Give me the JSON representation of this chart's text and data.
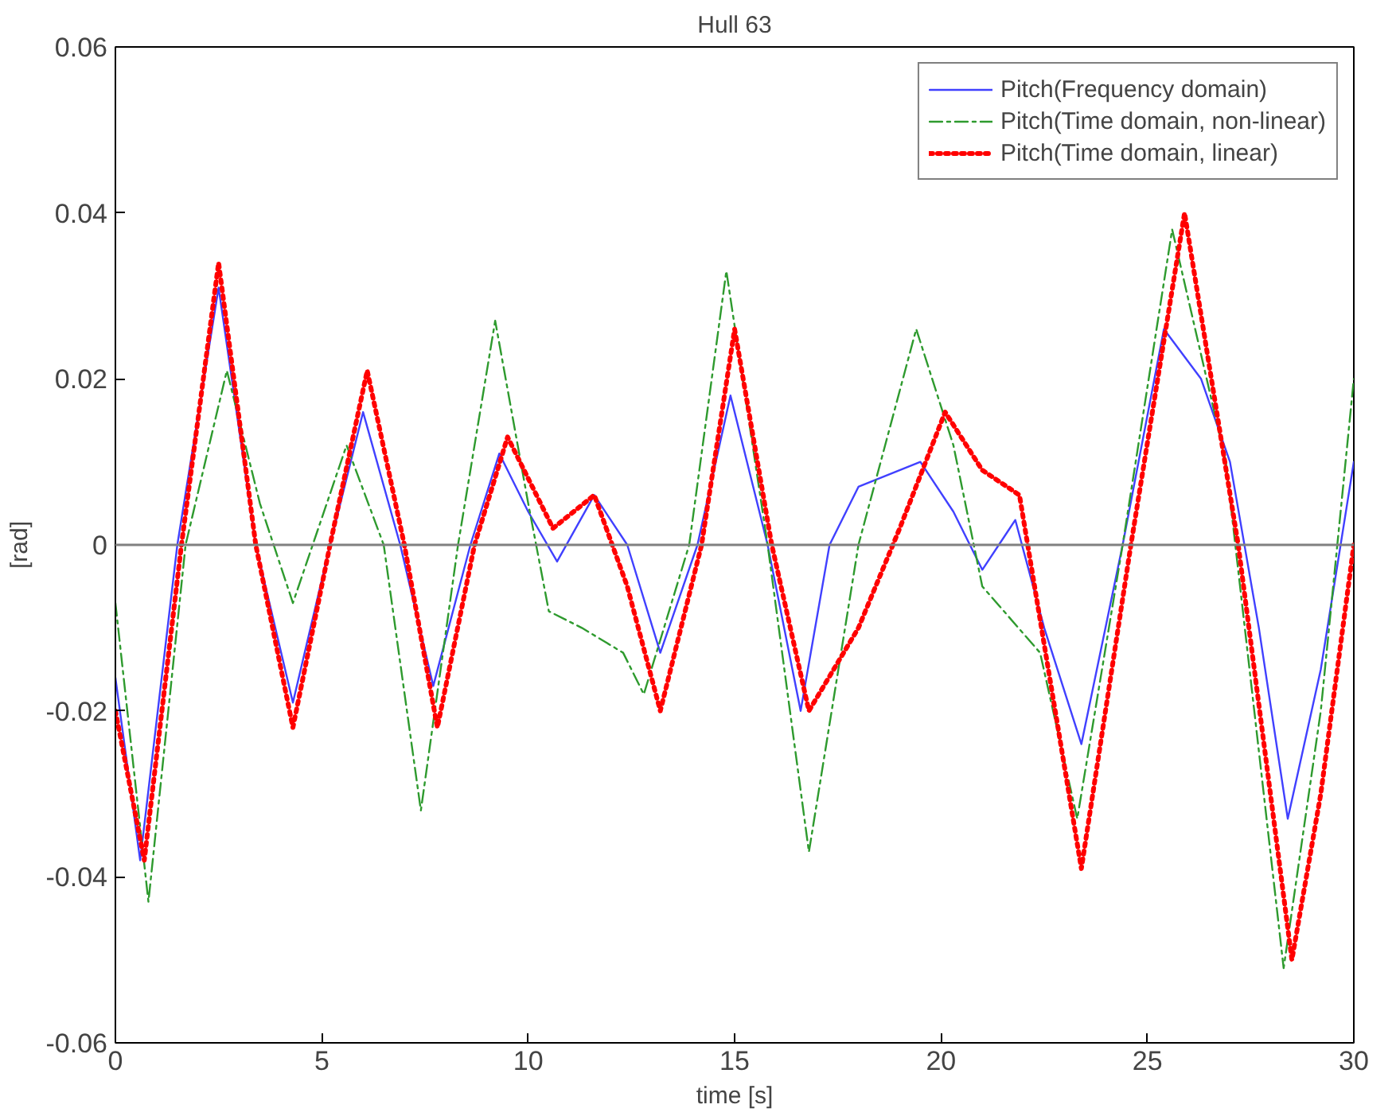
{
  "chart_data": {
    "type": "line",
    "title": "Hull 63",
    "xlabel": "time [s]",
    "ylabel": "[rad]",
    "xlim": [
      0,
      30
    ],
    "xticks": [
      0,
      5,
      10,
      15,
      20,
      25,
      30
    ],
    "ylim": [
      -0.06,
      0.06
    ],
    "yticks": [
      {
        "value": -0.06,
        "label": "-0.06"
      },
      {
        "value": -0.04,
        "label": "-0.04"
      },
      {
        "value": -0.02,
        "label": "-0.02"
      },
      {
        "value": 0,
        "label": "0"
      },
      {
        "value": 0.02,
        "label": "0.02"
      },
      {
        "value": 0.04,
        "label": "0.04"
      },
      {
        "value": 0.06,
        "label": "0.06"
      }
    ],
    "grid": false,
    "legend": "top right",
    "ref_lines": [
      {
        "axis": "y",
        "value": 0,
        "color": "#808080"
      }
    ],
    "series": [
      {
        "name": "Pitch(Frequency domain)",
        "color": "#4040ff",
        "line_style": "solid",
        "x": [
          0,
          0.6,
          1.5,
          2.5,
          3.4,
          4.3,
          5.2,
          6,
          6.9,
          7.7,
          8.6,
          9.3,
          10,
          10.7,
          11.6,
          12.4,
          13.2,
          14.1,
          14.9,
          15.8,
          16.6,
          17.3,
          18,
          19.5,
          20.3,
          21,
          21.8,
          22.5,
          23.4,
          24.4,
          25.4,
          26.3,
          27,
          27.7,
          28.4,
          29.2,
          30
        ],
        "values": [
          -0.016,
          -0.038,
          0,
          0.031,
          0,
          -0.019,
          0,
          0.016,
          0,
          -0.017,
          0,
          0.011,
          0.004,
          -0.002,
          0.006,
          0,
          -0.013,
          0,
          0.018,
          0,
          -0.02,
          0,
          0.007,
          0.01,
          0.004,
          -0.003,
          0.003,
          -0.01,
          -0.024,
          0,
          0.026,
          0.02,
          0.01,
          -0.01,
          -0.033,
          -0.015,
          0.01
        ]
      },
      {
        "name": "Pitch(Time domain, non-linear)",
        "color": "#2e9a2e",
        "line_style": "dashed",
        "x": [
          0,
          0.8,
          1.7,
          2.7,
          3.5,
          4.3,
          5.6,
          6.5,
          7.4,
          8.3,
          9.2,
          10,
          10.5,
          11.3,
          12.3,
          12.8,
          13.9,
          14.8,
          15.8,
          16.8,
          18,
          19.4,
          20.3,
          21,
          22.4,
          23.3,
          24.4,
          25.6,
          26.9,
          28.3,
          29.2,
          30
        ],
        "values": [
          -0.007,
          -0.043,
          0,
          0.021,
          0.005,
          -0.007,
          0.012,
          0,
          -0.032,
          0,
          0.027,
          0.005,
          -0.008,
          -0.01,
          -0.013,
          -0.018,
          0,
          0.033,
          0,
          -0.037,
          0,
          0.026,
          0.012,
          -0.005,
          -0.013,
          -0.033,
          0,
          0.038,
          0.01,
          -0.051,
          -0.02,
          0.02
        ]
      },
      {
        "name": "Pitch(Time domain, linear)",
        "color": "#ff0000",
        "line_style": "dotted",
        "x": [
          0,
          0.7,
          1.6,
          2.5,
          3.4,
          4.3,
          5.2,
          6.1,
          7,
          7.8,
          8.7,
          9.5,
          10.6,
          11.6,
          12.4,
          13.2,
          14.2,
          15,
          15.9,
          16.8,
          18,
          19,
          20.1,
          21,
          21.9,
          22.6,
          23.4,
          24.6,
          25.9,
          27.2,
          28.5,
          29.2,
          30
        ],
        "values": [
          -0.02,
          -0.038,
          0,
          0.034,
          0,
          -0.022,
          0,
          0.021,
          0,
          -0.022,
          0,
          0.013,
          0.002,
          0.006,
          -0.005,
          -0.02,
          0,
          0.026,
          0,
          -0.02,
          -0.01,
          0.002,
          0.016,
          0.009,
          0.006,
          -0.015,
          -0.039,
          0,
          0.04,
          0,
          -0.05,
          -0.03,
          0.0
        ]
      }
    ]
  }
}
